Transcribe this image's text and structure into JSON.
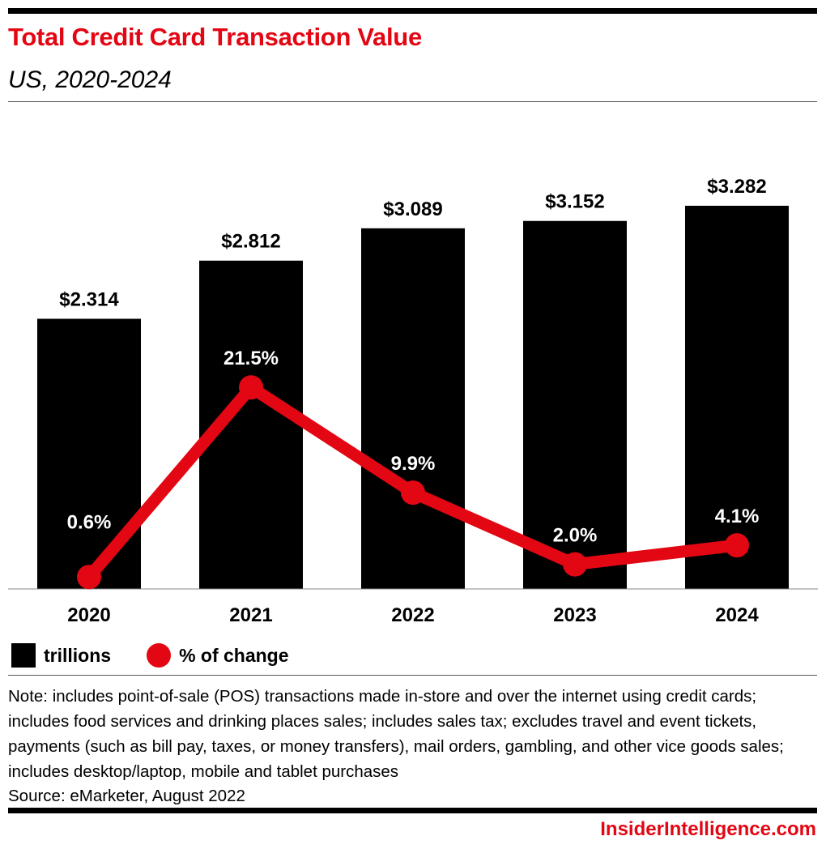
{
  "header": {
    "title": "Total Credit Card Transaction Value",
    "subtitle": "US, 2020-2024"
  },
  "chart_data": {
    "type": "bar",
    "categories": [
      "2020",
      "2021",
      "2022",
      "2023",
      "2024"
    ],
    "series": [
      {
        "name": "trillions",
        "type": "bar",
        "values": [
          2.314,
          2.812,
          3.089,
          3.152,
          3.282
        ],
        "labels": [
          "$2.314",
          "$2.812",
          "$3.089",
          "$3.152",
          "$3.282"
        ],
        "color": "#000000"
      },
      {
        "name": "% of change",
        "type": "line",
        "values": [
          0.6,
          21.5,
          9.9,
          2.0,
          4.1
        ],
        "labels": [
          "0.6%",
          "21.5%",
          "9.9%",
          "2.0%",
          "4.1%"
        ],
        "color": "#e30613"
      }
    ],
    "grid": false,
    "legend": "bottom-left"
  },
  "legend": {
    "bar_label": "trillions",
    "line_label": "% of change"
  },
  "footer": {
    "note": "Note: includes point-of-sale (POS) transactions made in-store and over the internet using credit cards; includes food services and drinking places sales; includes sales tax; excludes travel and event tickets, payments (such as bill pay, taxes, or money transfers), mail orders, gambling, and other vice goods sales; includes desktop/laptop, mobile and tablet purchases",
    "source": "Source: eMarketer, August 2022",
    "brand": "InsiderIntelligence.com"
  }
}
